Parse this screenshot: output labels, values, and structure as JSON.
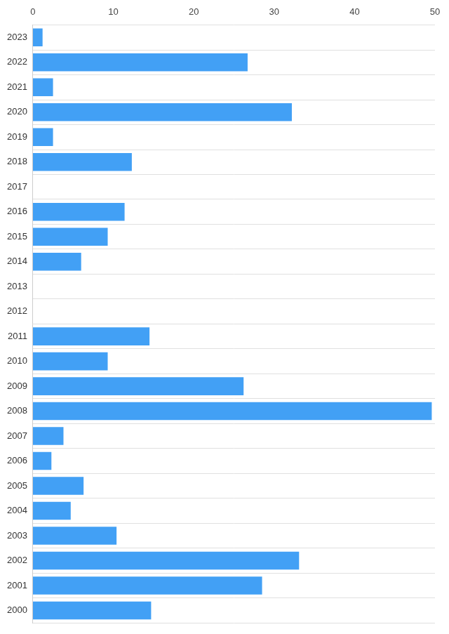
{
  "chart_data": {
    "type": "bar",
    "orientation": "horizontal",
    "categories": [
      "2023",
      "2022",
      "2021",
      "2020",
      "2019",
      "2018",
      "2017",
      "2016",
      "2015",
      "2014",
      "2013",
      "2012",
      "2011",
      "2010",
      "2009",
      "2008",
      "2007",
      "2006",
      "2005",
      "2004",
      "2003",
      "2002",
      "2001",
      "2000"
    ],
    "values": [
      1.2,
      26.7,
      2.5,
      32.2,
      2.5,
      12.3,
      0,
      11.4,
      9.3,
      6.0,
      0,
      0,
      14.5,
      9.3,
      26.2,
      49.6,
      3.8,
      2.3,
      6.3,
      4.7,
      10.4,
      33.1,
      28.5,
      14.7
    ],
    "color": "#42a0f5",
    "xlim": [
      0,
      50
    ],
    "xticks": [
      0,
      10,
      20,
      30,
      40,
      50
    ],
    "grid": true
  }
}
